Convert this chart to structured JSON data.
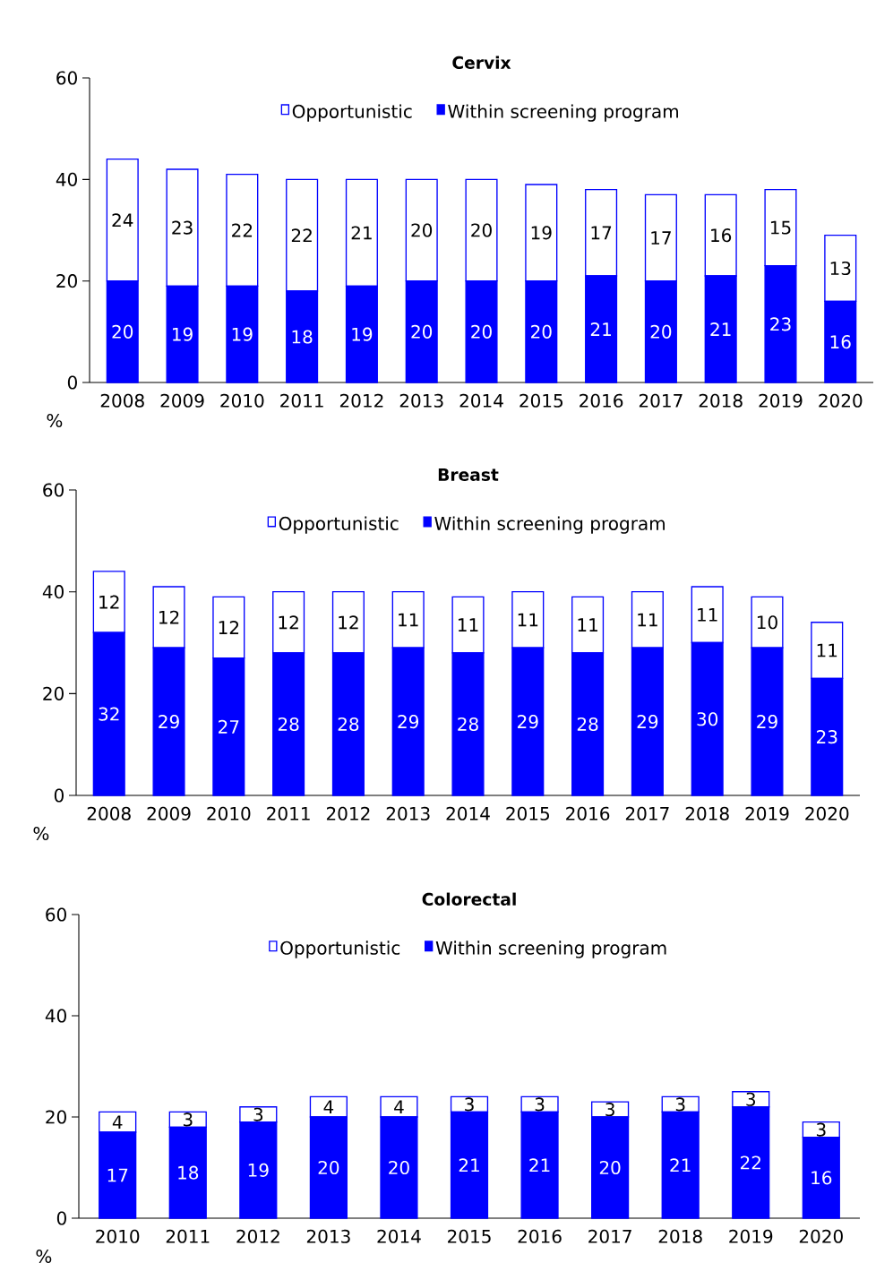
{
  "chart_data": [
    {
      "type": "bar",
      "title": "Cervix",
      "ylabel": "%",
      "categories": [
        "2008",
        "2009",
        "2010",
        "2011",
        "2012",
        "2013",
        "2014",
        "2015",
        "2016",
        "2017",
        "2018",
        "2019",
        "2020"
      ],
      "stacked": true,
      "ylim": [
        0,
        60
      ],
      "yticks": [
        0,
        20,
        40,
        60
      ],
      "legend": "top",
      "data_labels": true,
      "series": [
        {
          "name": "Within screening program",
          "color": "#0000ff",
          "values": [
            20,
            19,
            19,
            18,
            19,
            20,
            20,
            20,
            21,
            20,
            21,
            23,
            16
          ]
        },
        {
          "name": "Opportunistic",
          "color": "#ffffff",
          "values": [
            24,
            23,
            22,
            22,
            21,
            20,
            20,
            19,
            17,
            17,
            16,
            15,
            13
          ]
        }
      ]
    },
    {
      "type": "bar",
      "title": "Breast",
      "ylabel": "%",
      "categories": [
        "2008",
        "2009",
        "2010",
        "2011",
        "2012",
        "2013",
        "2014",
        "2015",
        "2016",
        "2017",
        "2018",
        "2019",
        "2020"
      ],
      "stacked": true,
      "ylim": [
        0,
        60
      ],
      "yticks": [
        0,
        20,
        40,
        60
      ],
      "legend": "top",
      "data_labels": true,
      "series": [
        {
          "name": "Within screening program",
          "color": "#0000ff",
          "values": [
            32,
            29,
            27,
            28,
            28,
            29,
            28,
            29,
            28,
            29,
            30,
            29,
            23
          ]
        },
        {
          "name": "Opportunistic",
          "color": "#ffffff",
          "values": [
            12,
            12,
            12,
            12,
            12,
            11,
            11,
            11,
            11,
            11,
            11,
            10,
            11
          ]
        }
      ]
    },
    {
      "type": "bar",
      "title": "Colorectal",
      "ylabel": "%",
      "categories": [
        "2010",
        "2011",
        "2012",
        "2013",
        "2014",
        "2015",
        "2016",
        "2017",
        "2018",
        "2019",
        "2020"
      ],
      "stacked": true,
      "ylim": [
        0,
        60
      ],
      "yticks": [
        0,
        20,
        40,
        60
      ],
      "legend": "top",
      "data_labels": true,
      "series": [
        {
          "name": "Within screening program",
          "color": "#0000ff",
          "values": [
            17,
            18,
            19,
            20,
            20,
            21,
            21,
            20,
            21,
            22,
            16
          ]
        },
        {
          "name": "Opportunistic",
          "color": "#ffffff",
          "values": [
            4,
            3,
            3,
            4,
            4,
            3,
            3,
            3,
            3,
            3,
            3
          ]
        }
      ]
    }
  ]
}
